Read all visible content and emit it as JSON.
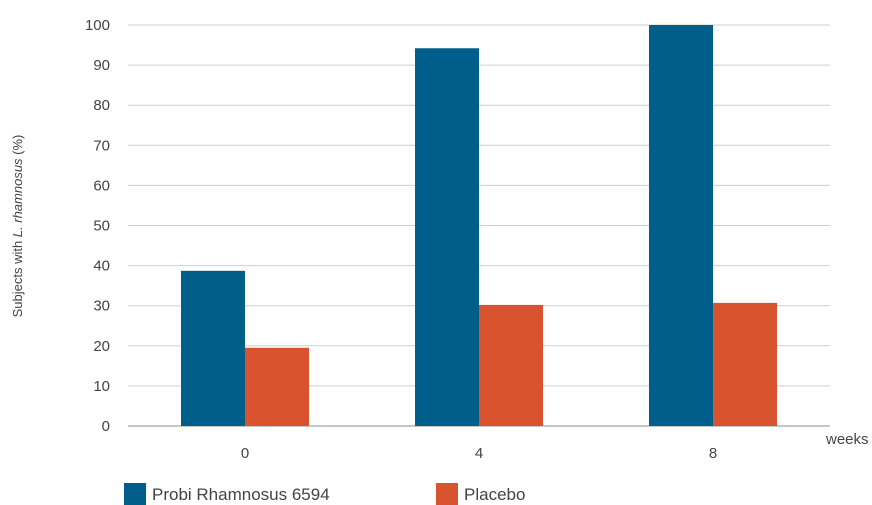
{
  "chart_data": {
    "type": "bar",
    "categories": [
      "0",
      "4",
      "8"
    ],
    "series": [
      {
        "name": "Probi Rhamnosus 6594",
        "color": "#005f8a",
        "values": [
          38.7,
          94.2,
          100
        ]
      },
      {
        "name": "Placebo",
        "color": "#d9532f",
        "values": [
          19.5,
          30.2,
          30.7
        ]
      }
    ],
    "ylabel_prefix": "Subjects with ",
    "ylabel_italic": "L. rhamnosus",
    "ylabel_suffix": " (%)",
    "xlabel": "weeks",
    "ylim": [
      0,
      100
    ],
    "yticks": [
      0,
      10,
      20,
      30,
      40,
      50,
      60,
      70,
      80,
      90,
      100
    ],
    "grid": true,
    "legend_position": "bottom-left"
  }
}
